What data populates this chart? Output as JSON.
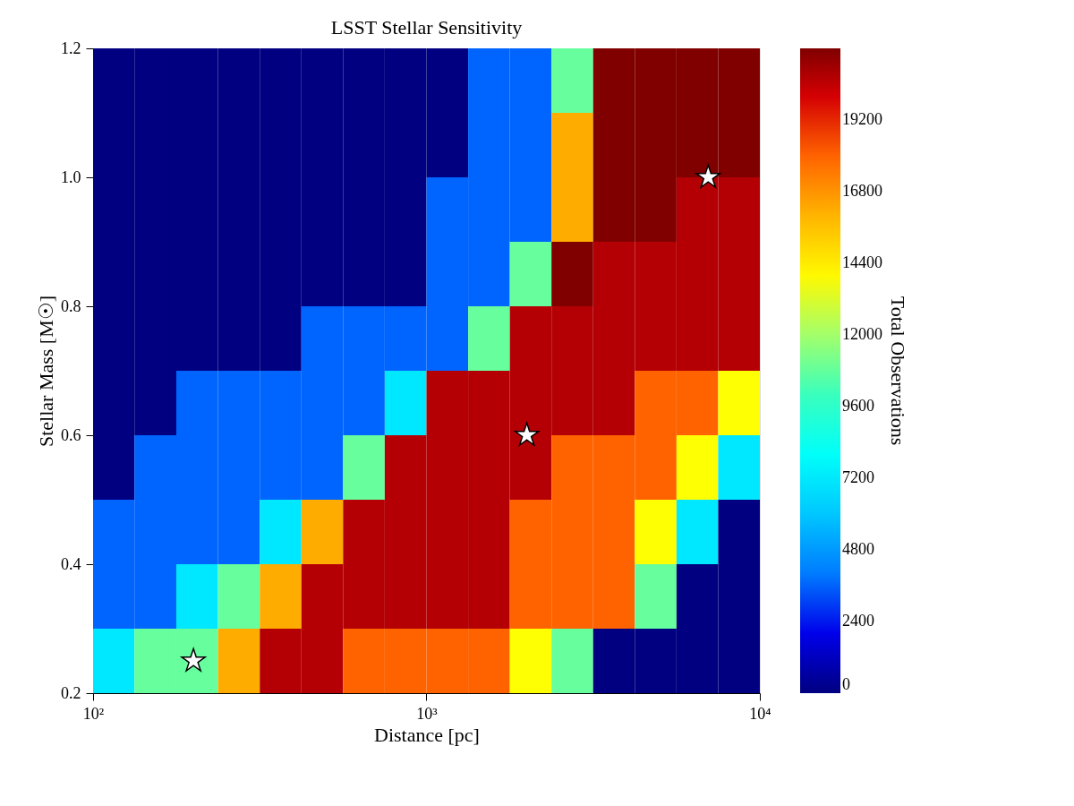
{
  "chart_data": {
    "type": "heatmap",
    "title": "LSST Stellar Sensitivity",
    "xlabel": "Distance [pc]",
    "ylabel": "Stellar Mass [M☉]",
    "clabel": "Total Observations",
    "log": "x",
    "xlim": [
      100,
      10000
    ],
    "xticks": [
      {
        "value": 100,
        "label": "10²"
      },
      {
        "value": 1000,
        "label": "10³"
      },
      {
        "value": 10000,
        "label": "10⁴"
      }
    ],
    "ylim": [
      0.2,
      1.2
    ],
    "yticks": [
      {
        "value": 0.2,
        "label": "0.2"
      },
      {
        "value": 0.4,
        "label": "0.4"
      },
      {
        "value": 0.6,
        "label": "0.6"
      },
      {
        "value": 0.8,
        "label": "0.8"
      },
      {
        "value": 1.0,
        "label": "1.0"
      },
      {
        "value": 1.2,
        "label": "1.2"
      }
    ],
    "clim": [
      0,
      21600
    ],
    "cticks": [
      {
        "value": 0,
        "label": "0"
      },
      {
        "value": 2400,
        "label": "2400"
      },
      {
        "value": 4800,
        "label": "4800"
      },
      {
        "value": 7200,
        "label": "7200"
      },
      {
        "value": 9600,
        "label": "9600"
      },
      {
        "value": 12000,
        "label": "12000"
      },
      {
        "value": 14400,
        "label": "14400"
      },
      {
        "value": 16800,
        "label": "16800"
      },
      {
        "value": 19200,
        "label": "19200"
      }
    ],
    "x": [
      115,
      154,
      205,
      274,
      365,
      487,
      649,
      866,
      1155,
      1540,
      2054,
      2738,
      3652,
      4870,
      6494,
      8660
    ],
    "y": [
      1.15,
      1.05,
      0.95,
      0.85,
      0.75,
      0.65,
      0.55,
      0.45,
      0.35,
      0.25
    ],
    "cells": [
      [
        0,
        0,
        0,
        0,
        0,
        0,
        0,
        0,
        0,
        3500,
        3500,
        10800,
        21600,
        21600,
        21600,
        21600
      ],
      [
        0,
        0,
        0,
        0,
        0,
        0,
        0,
        0,
        0,
        3500,
        3500,
        16200,
        21600,
        21600,
        21600,
        21600
      ],
      [
        0,
        0,
        0,
        0,
        0,
        0,
        0,
        0,
        3500,
        3500,
        3500,
        16200,
        21600,
        21600,
        20600,
        20600
      ],
      [
        0,
        0,
        0,
        0,
        0,
        0,
        0,
        0,
        3500,
        3500,
        10800,
        21600,
        20600,
        20600,
        20600,
        20600
      ],
      [
        0,
        0,
        0,
        0,
        0,
        3500,
        3500,
        3500,
        3500,
        10800,
        20600,
        20600,
        20600,
        20600,
        20600,
        20600
      ],
      [
        0,
        0,
        3500,
        3500,
        3500,
        3500,
        3500,
        7000,
        20600,
        20600,
        20600,
        20600,
        20600,
        18000,
        18000,
        13800
      ],
      [
        0,
        3500,
        3500,
        3500,
        3500,
        3500,
        10800,
        20600,
        20600,
        20600,
        20600,
        18000,
        18000,
        18000,
        13800,
        7000
      ],
      [
        3500,
        3500,
        3500,
        3500,
        7000,
        16200,
        20600,
        20600,
        20600,
        20600,
        18000,
        18000,
        18000,
        13800,
        7000,
        0
      ],
      [
        3500,
        3500,
        7000,
        10800,
        16200,
        20600,
        20600,
        20600,
        20600,
        20600,
        18000,
        18000,
        18000,
        10800,
        0,
        0
      ],
      [
        7000,
        10800,
        10800,
        16200,
        20600,
        20600,
        18000,
        18000,
        18000,
        18000,
        13800,
        10800,
        0,
        0,
        0,
        0
      ]
    ],
    "series": [
      {
        "type": "scatter",
        "x": [
          200,
          2000,
          7000
        ],
        "values": [
          0.25,
          0.6,
          1.0
        ],
        "color": "#ffffff",
        "marker": "star"
      }
    ]
  }
}
